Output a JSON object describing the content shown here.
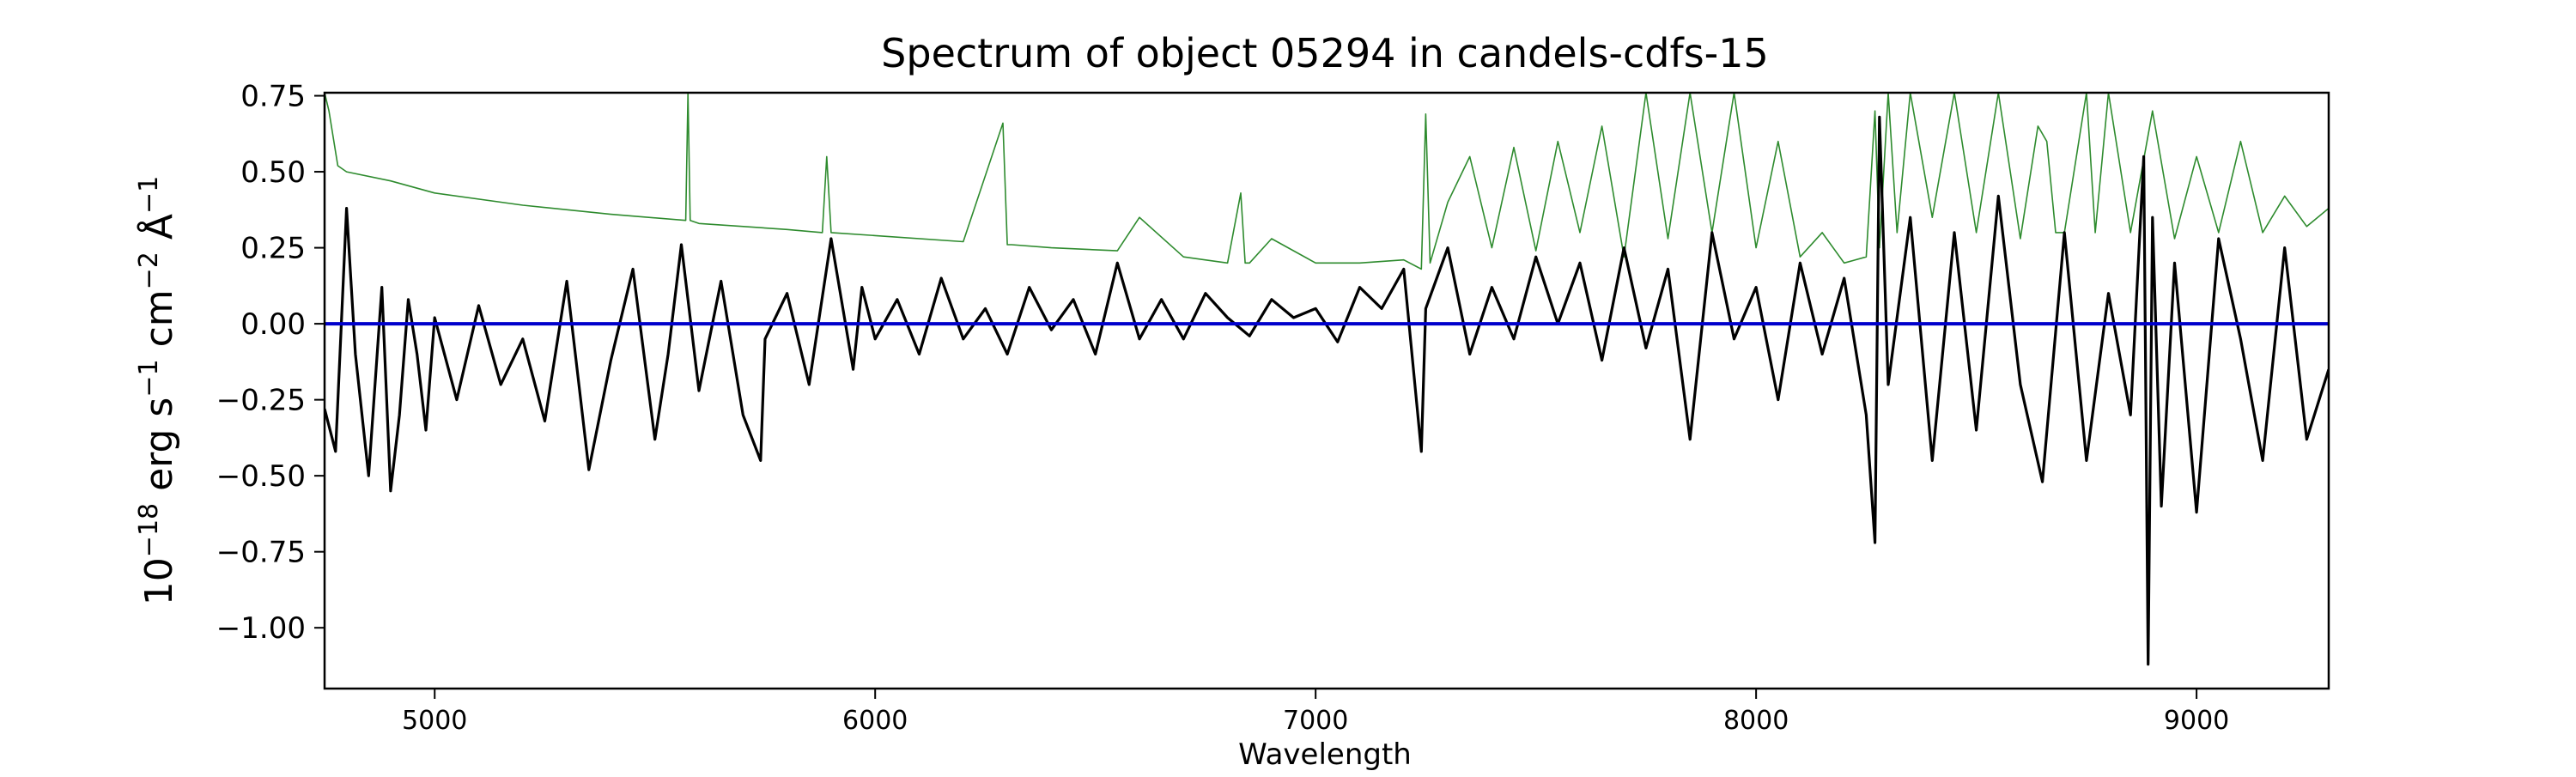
{
  "chart_data": {
    "type": "line",
    "title": "Spectrum of object 05294 in candels-cdfs-15",
    "xlabel": "Wavelength",
    "ylabel_parts": [
      "10",
      "−18",
      " erg s",
      "−1",
      " cm",
      "−2",
      " Å",
      "−1"
    ],
    "xlim": [
      4750,
      9300
    ],
    "ylim": [
      -1.2,
      0.76
    ],
    "x_ticks": [
      5000,
      6000,
      7000,
      8000,
      9000
    ],
    "x_tick_labels": [
      "5000",
      "6000",
      "7000",
      "8000",
      "9000"
    ],
    "y_ticks": [
      0.75,
      0.5,
      0.25,
      0.0,
      -0.25,
      -0.5,
      -0.75,
      -1.0
    ],
    "y_tick_labels": [
      "0.75",
      "0.50",
      "0.25",
      "0.00",
      "−0.25",
      "−0.50",
      "−0.75",
      "−1.00"
    ],
    "grid": false,
    "legend": "none",
    "series": [
      {
        "role": "flux",
        "color": "#000000",
        "description": "noisy flux spectrum (sampled key points)",
        "x": [
          4750,
          4775,
          4800,
          4820,
          4850,
          4880,
          4900,
          4920,
          4940,
          4960,
          4980,
          5000,
          5050,
          5100,
          5150,
          5200,
          5250,
          5300,
          5350,
          5400,
          5450,
          5500,
          5530,
          5560,
          5600,
          5650,
          5700,
          5740,
          5750,
          5800,
          5850,
          5900,
          5950,
          5970,
          6000,
          6050,
          6100,
          6150,
          6200,
          6250,
          6300,
          6350,
          6400,
          6450,
          6500,
          6550,
          6600,
          6650,
          6700,
          6750,
          6800,
          6850,
          6900,
          6950,
          7000,
          7050,
          7100,
          7150,
          7200,
          7240,
          7250,
          7300,
          7350,
          7400,
          7450,
          7500,
          7550,
          7600,
          7650,
          7700,
          7750,
          7800,
          7850,
          7900,
          7950,
          8000,
          8050,
          8100,
          8150,
          8200,
          8250,
          8270,
          8280,
          8300,
          8350,
          8400,
          8450,
          8500,
          8550,
          8600,
          8650,
          8700,
          8750,
          8800,
          8850,
          8880,
          8890,
          8900,
          8920,
          8950,
          9000,
          9050,
          9100,
          9150,
          9200,
          9250,
          9300
        ],
        "y": [
          -0.28,
          -0.42,
          0.38,
          -0.1,
          -0.5,
          0.12,
          -0.55,
          -0.3,
          0.08,
          -0.1,
          -0.35,
          0.02,
          -0.25,
          0.06,
          -0.2,
          -0.05,
          -0.32,
          0.14,
          -0.48,
          -0.12,
          0.18,
          -0.38,
          -0.1,
          0.26,
          -0.22,
          0.14,
          -0.3,
          -0.45,
          -0.05,
          0.1,
          -0.2,
          0.28,
          -0.15,
          0.12,
          -0.05,
          0.08,
          -0.1,
          0.15,
          -0.05,
          0.05,
          -0.1,
          0.12,
          -0.02,
          0.08,
          -0.1,
          0.2,
          -0.05,
          0.08,
          -0.05,
          0.1,
          0.02,
          -0.04,
          0.08,
          0.02,
          0.05,
          -0.06,
          0.12,
          0.05,
          0.18,
          -0.42,
          0.05,
          0.25,
          -0.1,
          0.12,
          -0.05,
          0.22,
          0.0,
          0.2,
          -0.12,
          0.25,
          -0.08,
          0.18,
          -0.38,
          0.3,
          -0.05,
          0.12,
          -0.25,
          0.2,
          -0.1,
          0.15,
          -0.3,
          -0.72,
          0.68,
          -0.2,
          0.35,
          -0.45,
          0.3,
          -0.35,
          0.42,
          -0.2,
          -0.52,
          0.3,
          -0.45,
          0.1,
          -0.3,
          0.55,
          -1.12,
          0.35,
          -0.6,
          0.2,
          -0.62,
          0.28,
          -0.05,
          -0.45,
          0.25,
          -0.38,
          -0.15
        ]
      },
      {
        "role": "error",
        "color": "#2e8b2e",
        "description": "error / sky spectrum (sampled key points)",
        "x": [
          4750,
          4760,
          4780,
          4800,
          4900,
          5000,
          5200,
          5400,
          5570,
          5575,
          5580,
          5600,
          5800,
          5880,
          5890,
          5900,
          6000,
          6200,
          6290,
          6300,
          6310,
          6400,
          6550,
          6600,
          6700,
          6800,
          6830,
          6840,
          6850,
          6900,
          7000,
          7100,
          7200,
          7240,
          7250,
          7260,
          7300,
          7350,
          7400,
          7450,
          7500,
          7550,
          7600,
          7650,
          7700,
          7750,
          7800,
          7850,
          7900,
          7950,
          8000,
          8050,
          8100,
          8150,
          8200,
          8250,
          8270,
          8280,
          8300,
          8320,
          8350,
          8400,
          8450,
          8500,
          8550,
          8600,
          8640,
          8660,
          8680,
          8700,
          8750,
          8770,
          8800,
          8850,
          8900,
          8950,
          9000,
          9050,
          9100,
          9150,
          9200,
          9250,
          9300
        ],
        "y": [
          0.76,
          0.7,
          0.52,
          0.5,
          0.47,
          0.43,
          0.39,
          0.36,
          0.34,
          0.76,
          0.34,
          0.33,
          0.31,
          0.3,
          0.55,
          0.3,
          0.29,
          0.27,
          0.66,
          0.26,
          0.26,
          0.25,
          0.24,
          0.35,
          0.22,
          0.2,
          0.43,
          0.2,
          0.2,
          0.28,
          0.2,
          0.2,
          0.21,
          0.18,
          0.69,
          0.2,
          0.4,
          0.55,
          0.25,
          0.58,
          0.24,
          0.6,
          0.3,
          0.65,
          0.22,
          0.76,
          0.28,
          0.76,
          0.3,
          0.76,
          0.25,
          0.6,
          0.22,
          0.3,
          0.2,
          0.22,
          0.7,
          0.25,
          0.76,
          0.3,
          0.76,
          0.35,
          0.76,
          0.3,
          0.76,
          0.28,
          0.65,
          0.6,
          0.3,
          0.3,
          0.76,
          0.3,
          0.76,
          0.3,
          0.7,
          0.28,
          0.55,
          0.3,
          0.6,
          0.3,
          0.42,
          0.32,
          0.38
        ]
      },
      {
        "role": "zero-line",
        "color": "#0000cc",
        "description": "horizontal reference line at zero",
        "x": [
          4750,
          9300
        ],
        "y": [
          0.0,
          0.0
        ]
      }
    ]
  }
}
